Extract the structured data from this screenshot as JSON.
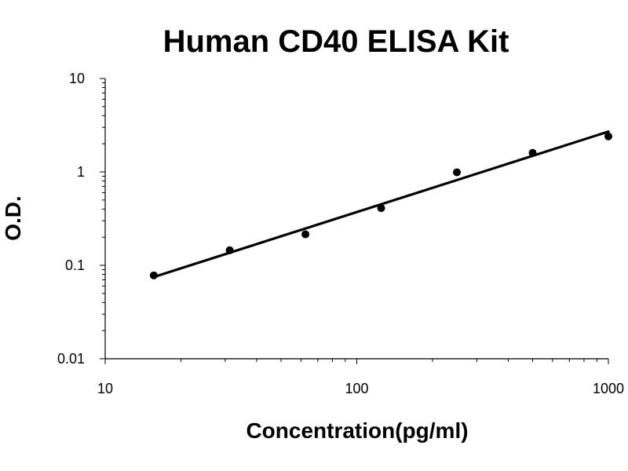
{
  "chart_data": {
    "type": "scatter",
    "title": "Human CD40 ELISA Kit",
    "xlabel": "Concentration(pg/ml)",
    "ylabel": "O.D.",
    "x_scale": "log",
    "y_scale": "log",
    "xlim": [
      10,
      1000
    ],
    "ylim": [
      0.01,
      10
    ],
    "x_ticks": [
      "10",
      "100",
      "1000"
    ],
    "y_ticks": [
      "0.01",
      "0.1",
      "1",
      "10"
    ],
    "grid": false,
    "legend": "none",
    "series": [
      {
        "x": [
          15.6,
          31.25,
          62.5,
          125,
          250,
          500,
          1000
        ],
        "y": [
          0.078,
          0.145,
          0.215,
          0.41,
          0.99,
          1.6,
          2.4
        ]
      }
    ],
    "trendline": {
      "type": "power",
      "x": [
        15.6,
        1000
      ],
      "y": [
        0.075,
        2.7
      ]
    },
    "colors": {
      "marker": "#000000",
      "line": "#000000",
      "axis": "#000000"
    }
  }
}
